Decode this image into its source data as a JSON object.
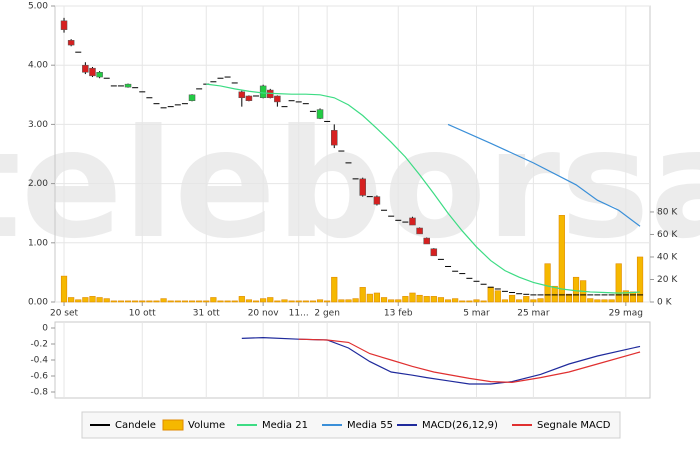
{
  "watermark": "teleborsa",
  "chart_data": [
    {
      "type": "candlestick",
      "xlim": [
        -1.27,
        82.4
      ],
      "xticks": [
        {
          "value": 0,
          "label": "20 set"
        },
        {
          "value": 11,
          "label": "10 ott"
        },
        {
          "value": 20,
          "label": "31 ott"
        },
        {
          "value": 28,
          "label": "20 nov"
        },
        {
          "value": 33,
          "label": "11..."
        },
        {
          "value": 37,
          "label": "2 gen"
        },
        {
          "value": 47,
          "label": "13 feb"
        },
        {
          "value": 58,
          "label": "5 mar"
        },
        {
          "value": 66,
          "label": "25 mar"
        },
        {
          "value": 79,
          "label": "29 mag"
        }
      ],
      "ylim": [
        0,
        5
      ],
      "yticks": [
        {
          "value": 0,
          "label": "0.00"
        },
        {
          "value": 1,
          "label": "1.00"
        },
        {
          "value": 2,
          "label": "2.00"
        },
        {
          "value": 3,
          "label": "3.00"
        },
        {
          "value": 4,
          "label": "4.00"
        },
        {
          "value": 5,
          "label": "5.00"
        }
      ],
      "y2lim": [
        0,
        263
      ],
      "y2ticks": [
        {
          "value": 0,
          "label": "0 K"
        },
        {
          "value": 20,
          "label": "20 K"
        },
        {
          "value": 40,
          "label": "40 K"
        },
        {
          "value": 60,
          "label": "60 K"
        },
        {
          "value": 80,
          "label": "80 K"
        }
      ],
      "grid": true,
      "series": [
        {
          "name": "Candele",
          "type": "candlestick",
          "color": "#000000",
          "up_color": "#22cc44",
          "down_color": "#d62020",
          "open": [
            4.75,
            4.42,
            4.22,
            4.0,
            3.95,
            3.8,
            3.78,
            3.65,
            3.65,
            3.63,
            3.62,
            3.55,
            3.45,
            3.35,
            3.28,
            3.3,
            3.33,
            3.35,
            3.4,
            3.6,
            3.68,
            3.72,
            3.78,
            3.8,
            3.7,
            3.55,
            3.48,
            3.48,
            3.45,
            3.58,
            3.48,
            3.3,
            3.4,
            3.38,
            3.35,
            3.22,
            3.1,
            3.05,
            2.9,
            2.55,
            2.35,
            2.08,
            2.08,
            1.78,
            1.78,
            1.55,
            1.45,
            1.38,
            1.35,
            1.42,
            1.25,
            1.08,
            0.9,
            0.72,
            0.6,
            0.52,
            0.48,
            0.4,
            0.35,
            0.3,
            0.25,
            0.22,
            0.18,
            0.16,
            0.14,
            0.13,
            0.12,
            0.12,
            0.12,
            0.12,
            0.12,
            0.12,
            0.12,
            0.12,
            0.12,
            0.12,
            0.12,
            0.12,
            0.12,
            0.12,
            0.12,
            0.12
          ],
          "high": [
            4.8,
            4.44,
            4.22,
            4.05,
            3.97,
            3.9,
            3.78,
            3.65,
            3.65,
            3.69,
            3.62,
            3.55,
            3.45,
            3.35,
            3.28,
            3.3,
            3.33,
            3.35,
            3.51,
            3.6,
            3.68,
            3.72,
            3.78,
            3.8,
            3.7,
            3.57,
            3.49,
            3.48,
            3.67,
            3.6,
            3.49,
            3.3,
            3.4,
            3.38,
            3.35,
            3.22,
            3.27,
            3.05,
            3.0,
            2.55,
            2.35,
            2.08,
            2.1,
            1.78,
            1.8,
            1.55,
            1.45,
            1.38,
            1.35,
            1.44,
            1.26,
            1.09,
            0.91,
            0.72,
            0.6,
            0.52,
            0.48,
            0.4,
            0.35,
            0.3,
            0.25,
            0.22,
            0.18,
            0.16,
            0.14,
            0.13,
            0.12,
            0.12,
            0.12,
            0.12,
            0.12,
            0.12,
            0.12,
            0.12,
            0.12,
            0.12,
            0.12,
            0.12,
            0.12,
            0.12,
            0.12,
            0.12
          ],
          "low": [
            4.55,
            4.32,
            4.22,
            3.85,
            3.8,
            3.78,
            3.78,
            3.65,
            3.65,
            3.62,
            3.62,
            3.55,
            3.45,
            3.35,
            3.28,
            3.3,
            3.33,
            3.35,
            3.39,
            3.6,
            3.68,
            3.72,
            3.78,
            3.8,
            3.7,
            3.3,
            3.39,
            3.48,
            3.44,
            3.44,
            3.3,
            3.3,
            3.4,
            3.38,
            3.35,
            3.22,
            3.09,
            3.05,
            2.6,
            2.55,
            2.35,
            2.08,
            1.78,
            1.78,
            1.63,
            1.55,
            1.45,
            1.38,
            1.35,
            1.3,
            1.15,
            0.98,
            0.78,
            0.72,
            0.6,
            0.52,
            0.48,
            0.4,
            0.35,
            0.3,
            0.25,
            0.22,
            0.18,
            0.16,
            0.14,
            0.13,
            0.12,
            0.12,
            0.12,
            0.12,
            0.12,
            0.12,
            0.12,
            0.12,
            0.12,
            0.12,
            0.12,
            0.12,
            0.12,
            0.12,
            0.12,
            0.12
          ],
          "close": [
            4.6,
            4.34,
            4.22,
            3.88,
            3.82,
            3.88,
            3.78,
            3.65,
            3.65,
            3.68,
            3.62,
            3.55,
            3.45,
            3.35,
            3.28,
            3.3,
            3.33,
            3.35,
            3.5,
            3.6,
            3.68,
            3.72,
            3.78,
            3.8,
            3.7,
            3.45,
            3.4,
            3.48,
            3.65,
            3.45,
            3.38,
            3.3,
            3.4,
            3.38,
            3.35,
            3.22,
            3.25,
            3.05,
            2.65,
            2.55,
            2.35,
            2.08,
            1.8,
            1.78,
            1.65,
            1.55,
            1.45,
            1.38,
            1.35,
            1.3,
            1.15,
            0.98,
            0.78,
            0.72,
            0.6,
            0.52,
            0.48,
            0.4,
            0.35,
            0.3,
            0.25,
            0.22,
            0.18,
            0.16,
            0.14,
            0.13,
            0.12,
            0.12,
            0.12,
            0.12,
            0.12,
            0.12,
            0.12,
            0.12,
            0.12,
            0.12,
            0.12,
            0.12,
            0.12,
            0.12,
            0.12,
            0.12
          ]
        },
        {
          "name": "Volume",
          "type": "bar",
          "axis": "y2",
          "color": "#f5b800",
          "edge_color": "#e08a00",
          "values": [
            23,
            4,
            2,
            4,
            5,
            4,
            3,
            1,
            1,
            1,
            1,
            1,
            1,
            1,
            3,
            1,
            1,
            1,
            1,
            1,
            1,
            4,
            1,
            1,
            1,
            5,
            2,
            1,
            3,
            4,
            1,
            2,
            1,
            1,
            1,
            1,
            2,
            1,
            22,
            2,
            2,
            3,
            13,
            7,
            8,
            4,
            2,
            2,
            5,
            8,
            6,
            5,
            5,
            4,
            2,
            3,
            1,
            1,
            2,
            1,
            13,
            10,
            2,
            6,
            2,
            5,
            2,
            3,
            34,
            14,
            77,
            7,
            22,
            19,
            3,
            2,
            2,
            2,
            34,
            10,
            9,
            40
          ]
        },
        {
          "name": "Media 21",
          "type": "line",
          "color": "#3ddc84",
          "x": [
            20,
            22,
            24,
            26,
            28,
            30,
            32,
            34,
            36,
            38,
            40,
            42,
            44,
            46,
            48,
            50,
            52,
            54,
            56,
            58,
            60,
            62,
            64,
            66,
            68,
            70,
            72,
            74,
            76,
            78,
            80,
            81
          ],
          "values": [
            3.68,
            3.65,
            3.6,
            3.56,
            3.53,
            3.52,
            3.51,
            3.51,
            3.5,
            3.45,
            3.33,
            3.15,
            2.93,
            2.7,
            2.45,
            2.15,
            1.83,
            1.5,
            1.2,
            0.93,
            0.7,
            0.53,
            0.42,
            0.33,
            0.27,
            0.22,
            0.19,
            0.17,
            0.16,
            0.15,
            0.16,
            0.17
          ]
        },
        {
          "name": "Media 55",
          "type": "line",
          "color": "#3a8fd8",
          "x": [
            54,
            60,
            66,
            72,
            75,
            78,
            81
          ],
          "values": [
            3.0,
            2.68,
            2.35,
            1.98,
            1.72,
            1.55,
            1.28
          ]
        }
      ]
    },
    {
      "type": "line",
      "xlim": [
        -1.27,
        82.4
      ],
      "ylim": [
        -0.875,
        0.075
      ],
      "yticks": [
        0,
        -0.2,
        -0.4,
        -0.6,
        -0.8
      ],
      "series": [
        {
          "name": "MACD(26,12,9)",
          "color": "#1f2a9c",
          "x": [
            25,
            28,
            33,
            37,
            40,
            43,
            46,
            49,
            51,
            54,
            57,
            60,
            63,
            67,
            71,
            75,
            81
          ],
          "values": [
            -0.13,
            -0.12,
            -0.14,
            -0.15,
            -0.25,
            -0.42,
            -0.55,
            -0.59,
            -0.62,
            -0.66,
            -0.7,
            -0.7,
            -0.67,
            -0.58,
            -0.45,
            -0.35,
            -0.23
          ]
        },
        {
          "name": "Segnale MACD",
          "color": "#e03030",
          "x": [
            33,
            37,
            40,
            43,
            46,
            49,
            52,
            57,
            60,
            63,
            67,
            71,
            75,
            81
          ],
          "values": [
            -0.14,
            -0.15,
            -0.18,
            -0.32,
            -0.4,
            -0.48,
            -0.55,
            -0.63,
            -0.67,
            -0.68,
            -0.62,
            -0.55,
            -0.45,
            -0.3
          ]
        }
      ]
    }
  ]
}
